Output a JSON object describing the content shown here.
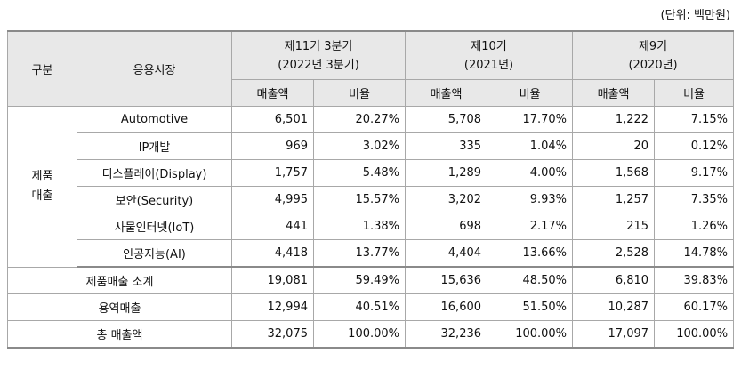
{
  "unit_label": "(단위: 백만원)",
  "header": {
    "col_gubun": "구분",
    "col_market": "응용시장",
    "periods": [
      {
        "line1": "제11기 3분기",
        "line2": "(2022년 3분기)"
      },
      {
        "line1": "제10기",
        "line2": "(2021년)"
      },
      {
        "line1": "제9기",
        "line2": "(2020년)"
      }
    ],
    "sub_sales": "매출액",
    "sub_ratio": "비율"
  },
  "group_label_line1": "제품",
  "group_label_line2": "매출",
  "rows": [
    {
      "market": "Automotive",
      "v": [
        "6,501",
        "20.27%",
        "5,708",
        "17.70%",
        "1,222",
        "7.15%"
      ]
    },
    {
      "market": "IP개발",
      "v": [
        "969",
        "3.02%",
        "335",
        "1.04%",
        "20",
        "0.12%"
      ]
    },
    {
      "market": "디스플레이(Display)",
      "v": [
        "1,757",
        "5.48%",
        "1,289",
        "4.00%",
        "1,568",
        "9.17%"
      ]
    },
    {
      "market": "보안(Security)",
      "v": [
        "4,995",
        "15.57%",
        "3,202",
        "9.93%",
        "1,257",
        "7.35%"
      ]
    },
    {
      "market": "사물인터넷(IoT)",
      "v": [
        "441",
        "1.38%",
        "698",
        "2.17%",
        "215",
        "1.26%"
      ]
    },
    {
      "market": "인공지능(AI)",
      "v": [
        "4,418",
        "13.77%",
        "4,404",
        "13.66%",
        "2,528",
        "14.78%"
      ]
    }
  ],
  "totals": [
    {
      "label": "제품매출 소계",
      "v": [
        "19,081",
        "59.49%",
        "15,636",
        "48.50%",
        "6,810",
        "39.83%"
      ]
    },
    {
      "label": "용역매출",
      "v": [
        "12,994",
        "40.51%",
        "16,600",
        "51.50%",
        "10,287",
        "60.17%"
      ]
    },
    {
      "label": "총 매출액",
      "v": [
        "32,075",
        "100.00%",
        "32,236",
        "100.00%",
        "17,097",
        "100.00%"
      ]
    }
  ]
}
